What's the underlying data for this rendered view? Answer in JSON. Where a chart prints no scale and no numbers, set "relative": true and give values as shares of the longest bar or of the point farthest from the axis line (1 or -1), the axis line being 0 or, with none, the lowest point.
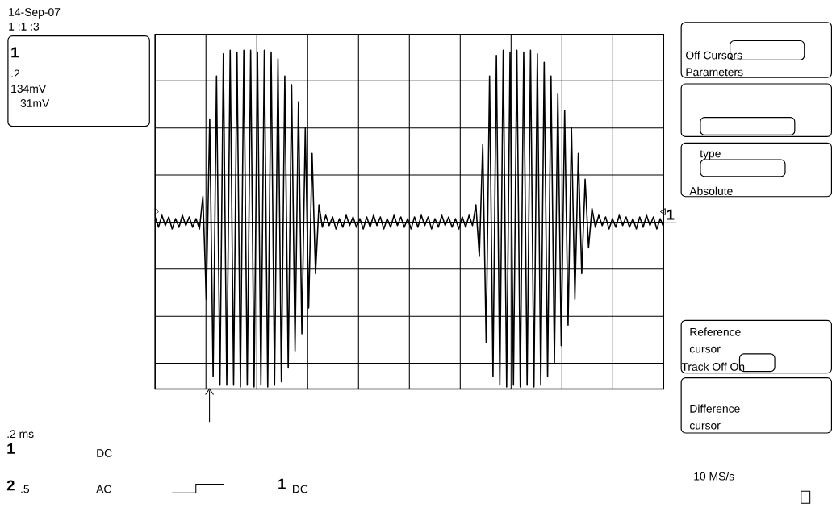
{
  "chart_data": {
    "type": "line",
    "relative": true,
    "grid": true,
    "categories": [
      null,
      null,
      null,
      null,
      null,
      null,
      null,
      null,
      null,
      null,
      null,
      null,
      null,
      null,
      null,
      null,
      null,
      null,
      null,
      null,
      null,
      null,
      null,
      null,
      null,
      null,
      null,
      null,
      null,
      null,
      null,
      null,
      null,
      null,
      null,
      null,
      null,
      null,
      null,
      null,
      null,
      null,
      null,
      null,
      null,
      null,
      null,
      null,
      null,
      null,
      null,
      null,
      null,
      null,
      null,
      null,
      null,
      null,
      null,
      null,
      null,
      null,
      null,
      null,
      null,
      null,
      null,
      null,
      null,
      null,
      null,
      null,
      null,
      null,
      null,
      null,
      null,
      null,
      null,
      null,
      null,
      null,
      null,
      null,
      null,
      null,
      null,
      null,
      null,
      null,
      null,
      null,
      null,
      null,
      null,
      null,
      null,
      null,
      null,
      null,
      null,
      null,
      null,
      null,
      null,
      null,
      null,
      null,
      null,
      null,
      null,
      null,
      null,
      null,
      null,
      null,
      null,
      null,
      null,
      null,
      null,
      null,
      null,
      null,
      null,
      null,
      null,
      null,
      null,
      null,
      null,
      null,
      null,
      null,
      null,
      null,
      null,
      null,
      null,
      null,
      null,
      null,
      null,
      null,
      null,
      null,
      null,
      null,
      null,
      null
    ],
    "series": [
      {
        "color": "#000000",
        "values": [
          0.03,
          -0.03,
          0.04,
          -0.02,
          0.03,
          -0.04,
          0.02,
          -0.03,
          0.04,
          -0.02,
          0.03,
          -0.03,
          0.02,
          -0.04,
          0.15,
          -0.45,
          0.6,
          -0.9,
          0.85,
          -0.95,
          0.98,
          -0.95,
          1,
          -0.95,
          0.99,
          -0.96,
          1,
          -0.95,
          1,
          -0.96,
          0.99,
          -0.95,
          1,
          -0.96,
          0.99,
          -0.95,
          0.95,
          -0.93,
          0.85,
          -0.85,
          0.8,
          -0.75,
          0.7,
          -0.65,
          0.55,
          -0.5,
          0.4,
          -0.3,
          0.1,
          -0.03,
          0.04,
          -0.02,
          0.03,
          -0.04,
          0.02,
          -0.03,
          0.04,
          -0.02,
          0.03,
          -0.03,
          0.02,
          -0.04,
          0.03,
          -0.03,
          0.04,
          -0.02,
          0.03,
          -0.04,
          0.02,
          -0.03,
          0.04,
          -0.02,
          0.03,
          -0.03,
          0.02,
          -0.04,
          0.03,
          -0.03,
          0.04,
          -0.02,
          0.03,
          -0.04,
          0.02,
          -0.03,
          0.04,
          -0.02,
          0.03,
          -0.03,
          0.02,
          -0.04,
          0.03,
          -0.03,
          0.04,
          -0.02,
          0.1,
          -0.2,
          0.45,
          -0.7,
          0.85,
          -0.9,
          0.97,
          -0.95,
          1,
          -0.96,
          0.99,
          -0.95,
          1,
          -0.96,
          0.99,
          -0.95,
          1,
          -0.96,
          0.98,
          -0.95,
          0.93,
          -0.9,
          0.85,
          -0.82,
          0.75,
          -0.72,
          0.65,
          -0.6,
          0.55,
          -0.45,
          0.4,
          -0.3,
          0.25,
          -0.15,
          0.08,
          -0.03,
          0.04,
          -0.02,
          0.03,
          -0.04,
          0.02,
          -0.03,
          0.04,
          -0.02,
          0.03,
          -0.03,
          0.02,
          -0.04,
          0.03,
          -0.03,
          0.04,
          -0.02,
          0.03,
          -0.04,
          0.02,
          -0.03
        ]
      }
    ],
    "annotations": [
      "14-Sep-07",
      "1 :1 :3",
      "1",
      ".2",
      "134mV",
      "31mV",
      "Off Cursors",
      "Parameters",
      "type",
      "Absolute",
      "Reference cursor",
      "Track Off On",
      "Difference cursor",
      "10 MS/s",
      ".2 ms",
      "1",
      "DC",
      "2",
      ".5",
      "AC",
      "1",
      "DC",
      "1"
    ]
  }
}
